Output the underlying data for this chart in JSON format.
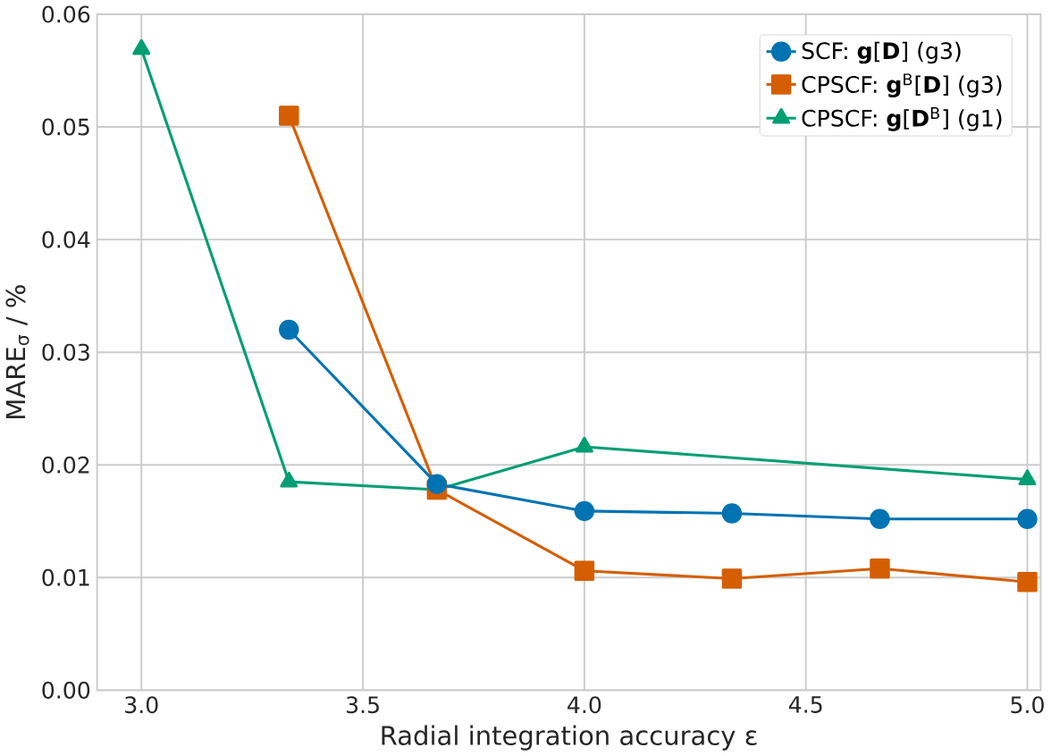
{
  "chart_data": {
    "type": "line",
    "xlabel": "Radial integration accuracy ε",
    "ylabel": "MARE$_{σ}$ / %",
    "xlim": [
      2.9,
      5.03
    ],
    "ylim": [
      0,
      0.06
    ],
    "xticks": [
      {
        "value": 3.0,
        "label": "3.0"
      },
      {
        "value": 3.5,
        "label": "3.5"
      },
      {
        "value": 4.0,
        "label": "4.0"
      },
      {
        "value": 4.5,
        "label": "4.5"
      },
      {
        "value": 5.0,
        "label": "5.0"
      }
    ],
    "yticks": [
      {
        "value": 0,
        "label": "0.00"
      },
      {
        "value": 0.01,
        "label": "0.01"
      },
      {
        "value": 0.02,
        "label": "0.02"
      },
      {
        "value": 0.03,
        "label": "0.03"
      },
      {
        "value": 0.04,
        "label": "0.04"
      },
      {
        "value": 0.05,
        "label": "0.05"
      },
      {
        "value": 0.06,
        "label": "0.06"
      }
    ],
    "grid": true,
    "legend": "top right",
    "series": [
      {
        "name": "SCF: **g**[**D**] (g3)",
        "color": "#0173b2",
        "marker": "circle",
        "x": [
          3.333,
          3.667,
          4.0,
          4.333,
          4.667,
          5.0
        ],
        "values": [
          0.032,
          0.0183,
          0.0159,
          0.0157,
          0.0152,
          0.0152
        ]
      },
      {
        "name": "CPSCF: **g**$^{B}$[**D**] (g3)",
        "color": "#d55e00",
        "marker": "square",
        "x": [
          3.333,
          3.667,
          4.0,
          4.333,
          4.667,
          5.0
        ],
        "values": [
          0.051,
          0.0178,
          0.0106,
          0.0099,
          0.0108,
          0.0096
        ]
      },
      {
        "name": "CPSCF: **g**[**D**$^{B}$] (g1)",
        "color": "#029e73",
        "marker": "triangle",
        "x": [
          3.0,
          3.333,
          3.667,
          4.0,
          5.0
        ],
        "values": [
          0.0569,
          0.0185,
          0.0178,
          0.0216,
          0.0187
        ]
      }
    ]
  }
}
